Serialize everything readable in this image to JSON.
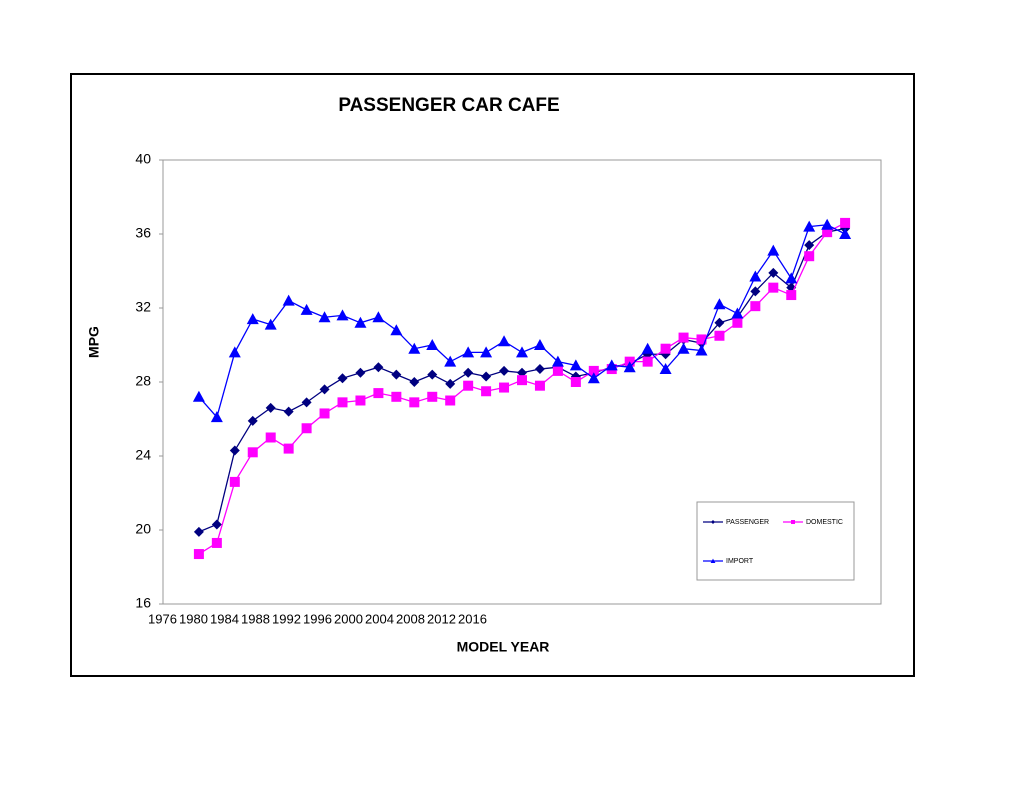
{
  "chart_data": {
    "type": "line",
    "title": "PASSENGER CAR CAFE",
    "xlabel": "MODEL YEAR",
    "ylabel": "MPG",
    "x": [
      1978,
      1979,
      1980,
      1981,
      1982,
      1983,
      1984,
      1985,
      1986,
      1987,
      1988,
      1989,
      1990,
      1991,
      1992,
      1993,
      1994,
      1995,
      1996,
      1997,
      1998,
      1999,
      2000,
      2001,
      2002,
      2003,
      2004,
      2005,
      2006,
      2007,
      2008,
      2009,
      2010,
      2011,
      2012,
      2013,
      2014
    ],
    "series": [
      {
        "name": "PASSENGER",
        "color": "#000080",
        "marker": "diamond",
        "values": [
          19.9,
          20.3,
          24.3,
          25.9,
          26.6,
          26.4,
          26.9,
          27.6,
          28.2,
          28.5,
          28.8,
          28.4,
          28.0,
          28.4,
          27.9,
          28.5,
          28.3,
          28.6,
          28.5,
          28.7,
          28.8,
          28.3,
          28.5,
          28.8,
          29.0,
          29.5,
          29.5,
          30.3,
          30.1,
          31.2,
          31.5,
          32.9,
          33.9,
          33.1,
          35.4,
          36.1,
          36.3
        ]
      },
      {
        "name": "DOMESTIC",
        "color": "#ff00ff",
        "marker": "square",
        "values": [
          18.7,
          19.3,
          22.6,
          24.2,
          25.0,
          24.4,
          25.5,
          26.3,
          26.9,
          27.0,
          27.4,
          27.2,
          26.9,
          27.2,
          27.0,
          27.8,
          27.5,
          27.7,
          28.1,
          27.8,
          28.6,
          28.0,
          28.6,
          28.7,
          29.1,
          29.1,
          29.8,
          30.4,
          30.3,
          30.5,
          31.2,
          32.1,
          33.1,
          32.7,
          34.8,
          36.1,
          36.6
        ]
      },
      {
        "name": "IMPORT",
        "color": "#0000ff",
        "marker": "triangle",
        "values": [
          27.2,
          26.1,
          29.6,
          31.4,
          31.1,
          32.4,
          31.9,
          31.5,
          31.6,
          31.2,
          31.5,
          30.8,
          29.8,
          30.0,
          29.1,
          29.6,
          29.6,
          30.2,
          29.6,
          30.0,
          29.1,
          28.9,
          28.2,
          28.9,
          28.8,
          29.8,
          28.7,
          29.8,
          29.7,
          32.2,
          31.7,
          33.7,
          35.1,
          33.6,
          36.4,
          36.5,
          36.0
        ]
      }
    ],
    "xlim": [
      1976,
      2016
    ],
    "xticks": [
      1976,
      1980,
      1984,
      1988,
      1992,
      1996,
      2000,
      2004,
      2008,
      2012,
      2016
    ],
    "ylim": [
      16,
      40
    ],
    "yticks": [
      16,
      20,
      24,
      28,
      32,
      36,
      40
    ],
    "grid": false,
    "legend": "lower right"
  }
}
